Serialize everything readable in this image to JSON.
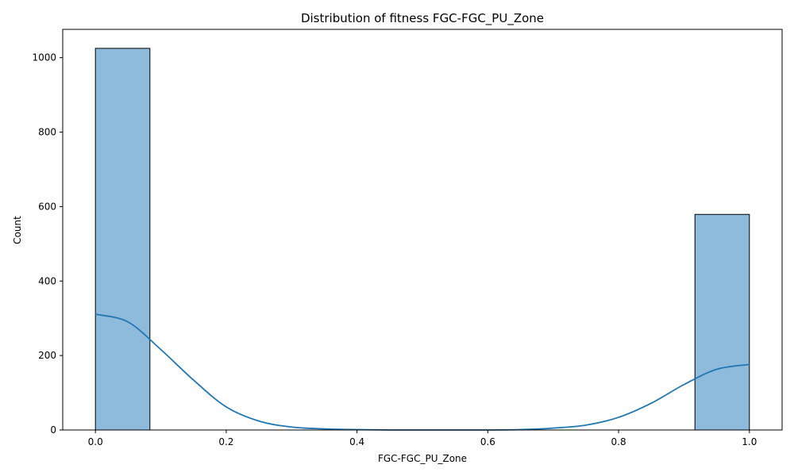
{
  "chart_data": {
    "type": "bar",
    "title": "Distribution of fitness FGC-FGC_PU_Zone",
    "xlabel": "FGC-FGC_PU_Zone",
    "ylabel": "Count",
    "xlim": [
      -0.05,
      1.05
    ],
    "ylim": [
      0,
      1076
    ],
    "x_ticks": [
      0.0,
      0.2,
      0.4,
      0.6,
      0.8,
      1.0
    ],
    "x_tick_labels": [
      "0.0",
      "0.2",
      "0.4",
      "0.6",
      "0.8",
      "1.0"
    ],
    "y_ticks": [
      0,
      200,
      400,
      600,
      800,
      1000
    ],
    "y_tick_labels": [
      "0",
      "200",
      "400",
      "600",
      "800",
      "1000"
    ],
    "bins": [
      {
        "x0": 0.0,
        "x1": 0.0833,
        "count": 1025
      },
      {
        "x0": 0.9167,
        "x1": 1.0,
        "count": 579
      }
    ],
    "kde": {
      "x": [
        0.0,
        0.05,
        0.1,
        0.15,
        0.2,
        0.25,
        0.3,
        0.35,
        0.4,
        0.45,
        0.5,
        0.55,
        0.6,
        0.65,
        0.7,
        0.75,
        0.8,
        0.85,
        0.9,
        0.95,
        1.0
      ],
      "y": [
        311,
        290,
        216,
        134,
        62,
        24,
        8,
        3,
        1,
        0,
        0,
        0,
        0,
        1,
        5,
        13,
        34,
        72,
        122,
        163,
        176
      ]
    },
    "grid": false,
    "legend": "none",
    "colors": {
      "bar_fill": "#8ebadb",
      "bar_edge": "#000000",
      "kde_line": "#1f77b4"
    }
  }
}
